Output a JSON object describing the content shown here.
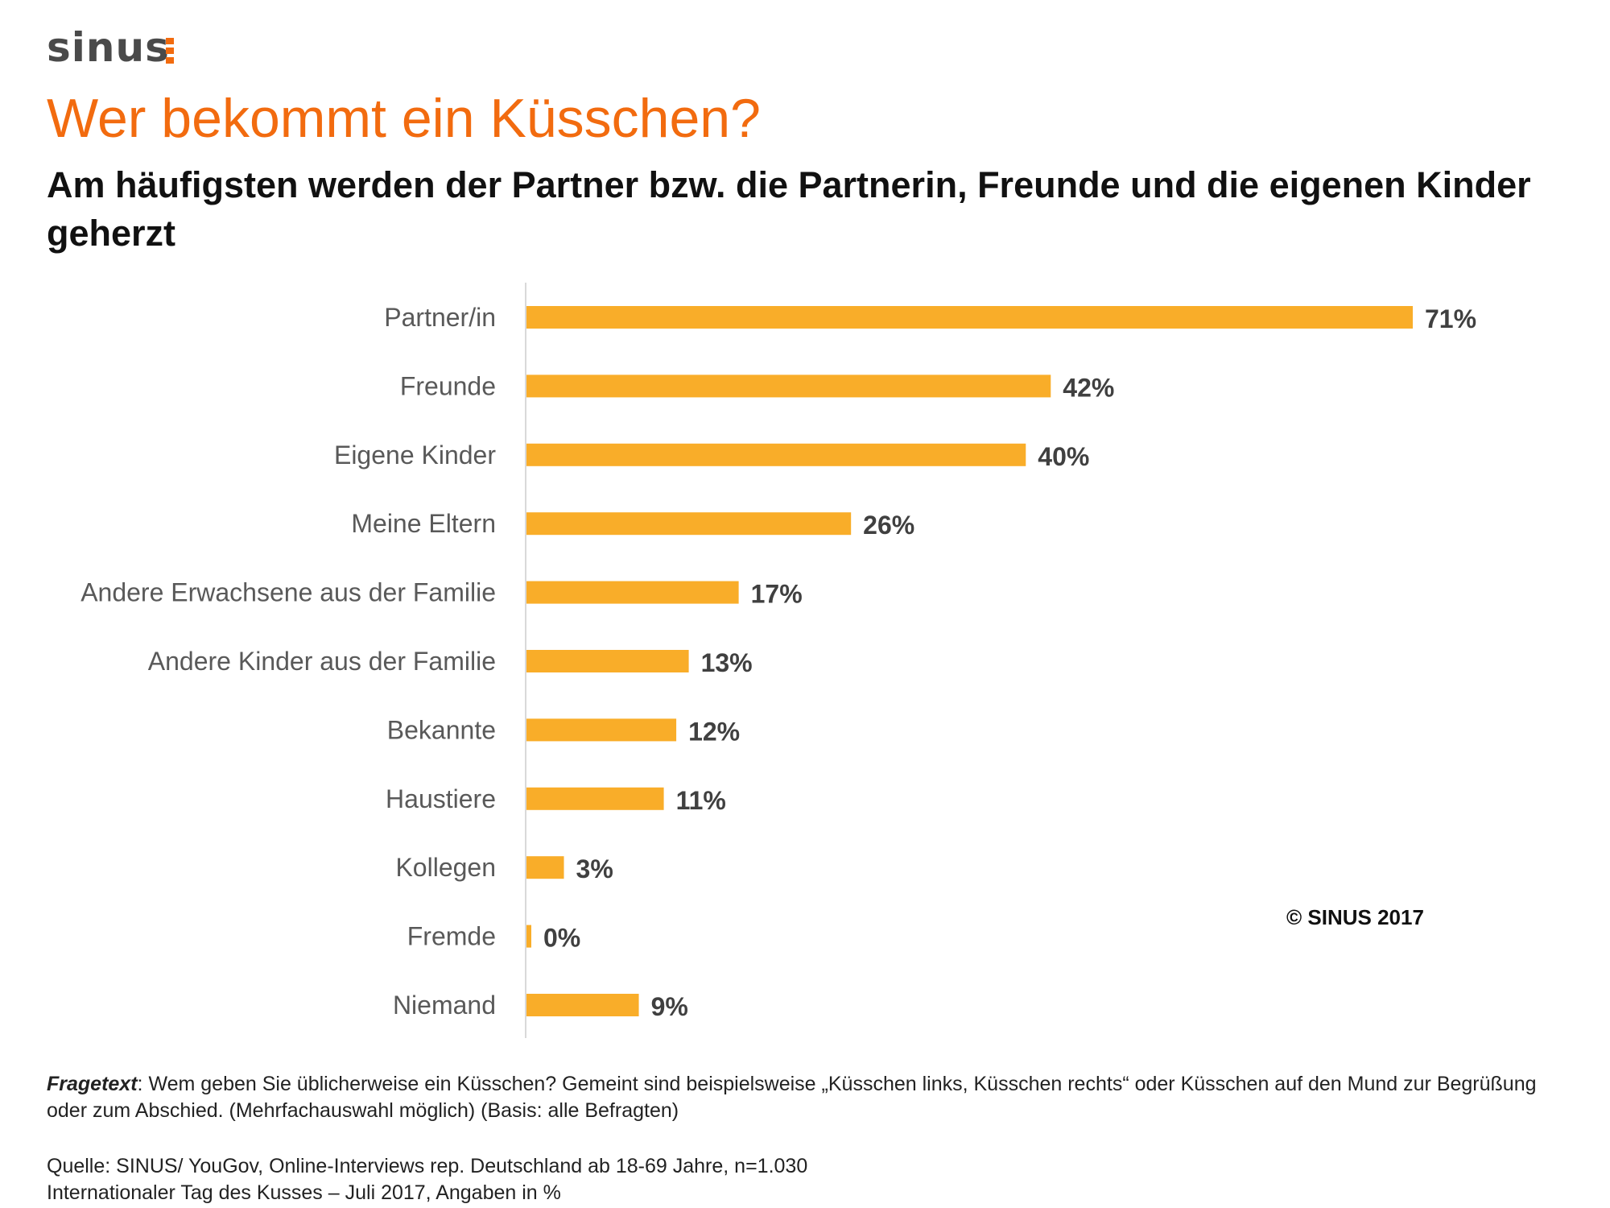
{
  "logo": {
    "text": "sinus",
    "accent_color": "#f26b0f"
  },
  "header": {
    "title": "Wer bekommt ein Küsschen?",
    "subtitle": "Am häufigsten werden der Partner bzw. die Partnerin, Freunde und die eigenen Kinder geherzt"
  },
  "chart_data": {
    "type": "bar",
    "orientation": "horizontal",
    "categories": [
      "Partner/in",
      "Freunde",
      "Eigene Kinder",
      "Meine Eltern",
      "Andere Erwachsene aus der Familie",
      "Andere Kinder aus der Familie",
      "Bekannte",
      "Haustiere",
      "Kollegen",
      "Fremde",
      "Niemand"
    ],
    "values": [
      71,
      42,
      40,
      26,
      17,
      13,
      12,
      11,
      3,
      0,
      9
    ],
    "value_labels": [
      "71%",
      "42%",
      "40%",
      "26%",
      "17%",
      "13%",
      "12%",
      "11%",
      "3%",
      "0%",
      "9%"
    ],
    "unit": "%",
    "xlim": [
      0,
      71
    ],
    "grid": false,
    "bar_color": "#f9ad29"
  },
  "copyright": "© SINUS 2017",
  "footer": {
    "question_label": "Fragetext",
    "question_text": ": Wem geben Sie üblicherweise ein Küsschen? Gemeint sind beispielsweise „Küsschen links, Küsschen rechts“ oder Küsschen auf den Mund zur Begrüßung",
    "question_line2": "oder zum Abschied. (Mehrfachauswahl möglich)  (Basis: alle Befragten)",
    "source": "Quelle: SINUS/ YouGov, Online-Interviews rep. Deutschland ab 18-69 Jahre, n=1.030",
    "context": "Internationaler Tag des Kusses – Juli 2017, Angaben in %"
  }
}
